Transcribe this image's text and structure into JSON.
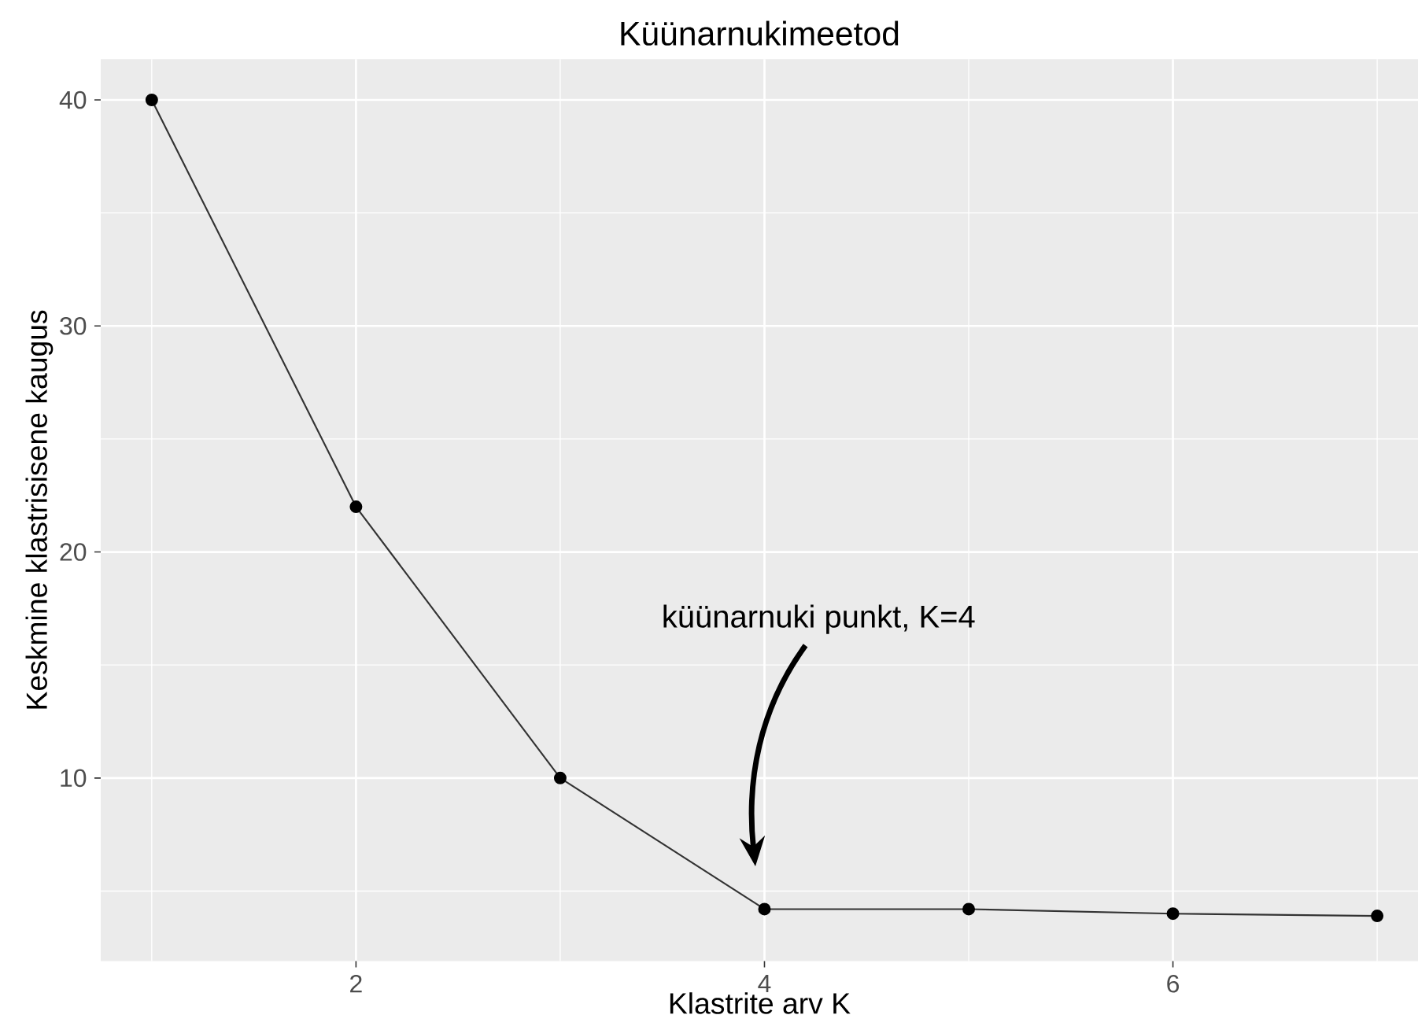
{
  "chart_data": {
    "type": "line",
    "title": "Küünarnukimeetod",
    "xlabel": "Klastrite arv K",
    "ylabel": "Keskmine klastrisisene kaugus",
    "x": [
      1,
      2,
      3,
      4,
      5,
      6,
      7
    ],
    "series": [
      {
        "color": "#000000",
        "values": [
          40,
          22,
          10,
          4.2,
          4.2,
          4.0,
          3.9
        ]
      }
    ],
    "xlim": [
      0.75,
      7.2
    ],
    "ylim": [
      1.9,
      41.8
    ],
    "xticks": [
      2,
      4,
      6
    ],
    "yticks": [
      10,
      20,
      30,
      40
    ],
    "grid": true,
    "marker": "circle",
    "line_style": "solid",
    "annotations": [
      "küünarnuki punkt, K=4"
    ]
  }
}
